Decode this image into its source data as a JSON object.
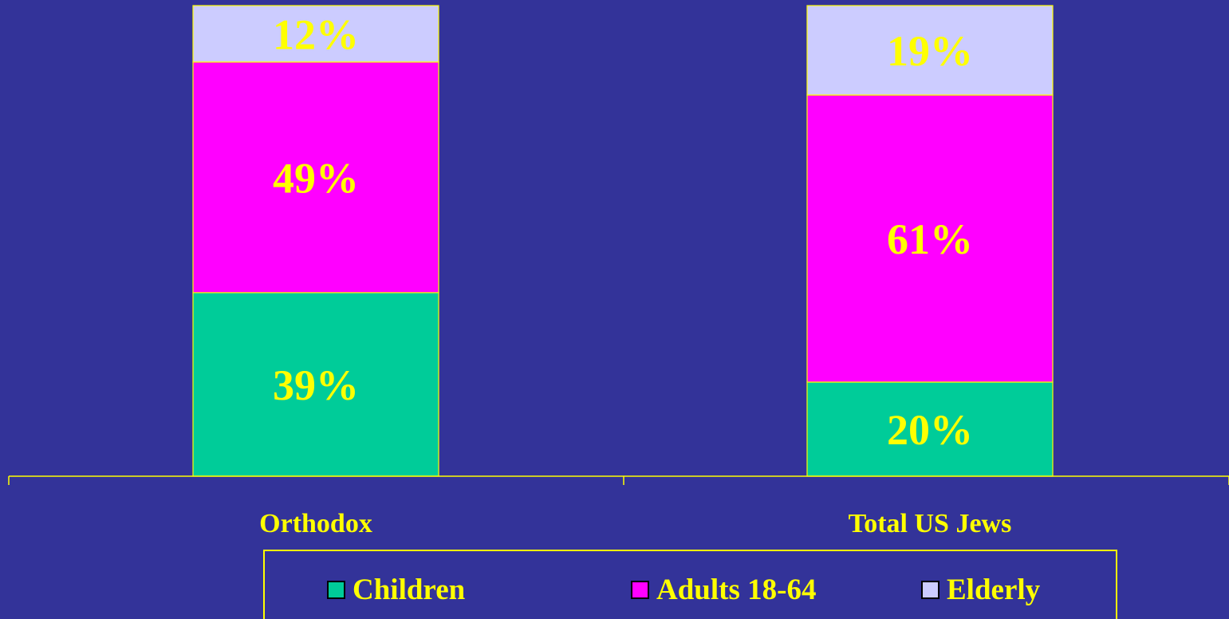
{
  "chart_data": {
    "type": "bar",
    "stacked": true,
    "categories": [
      "Orthodox",
      "Total US Jews"
    ],
    "series": [
      {
        "name": "Children",
        "values": [
          39,
          20
        ],
        "labels": [
          "39%",
          "20%"
        ],
        "color": "#00CC99"
      },
      {
        "name": "Adults 18-64",
        "values": [
          49,
          61
        ],
        "labels": [
          "49%",
          "61%"
        ],
        "color": "#FF00FF"
      },
      {
        "name": "Elderly",
        "values": [
          12,
          19
        ],
        "labels": [
          "12%",
          "19%"
        ],
        "color": "#CCCCFF"
      }
    ],
    "title": "",
    "xlabel": "",
    "ylabel": "",
    "ylim": [
      0,
      100
    ],
    "grid": false,
    "legend_position": "bottom",
    "background_color": "#333399",
    "text_color": "#FFFF00",
    "axis_color": "#FFFF00"
  },
  "legend": {
    "items": [
      {
        "label": "Children",
        "color": "#00CC99"
      },
      {
        "label": "Adults 18-64",
        "color": "#FF00FF"
      },
      {
        "label": "Elderly",
        "color": "#CCCCFF"
      }
    ]
  }
}
